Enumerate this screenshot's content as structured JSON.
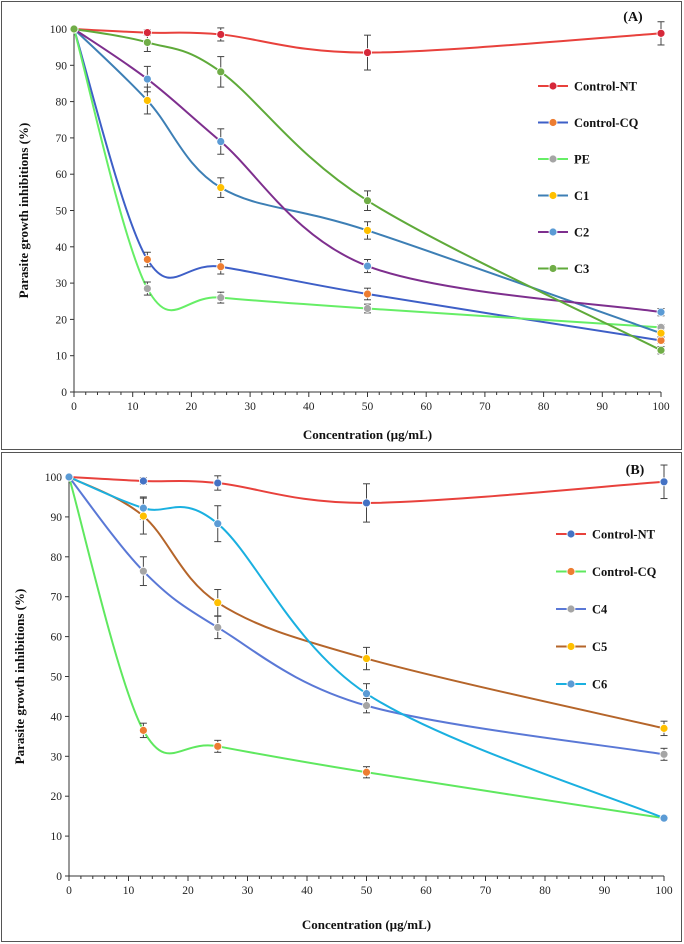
{
  "chart_data": [
    {
      "type": "line",
      "panel_label": "(A)",
      "xlabel": "Concentration (µg/mL)",
      "ylabel": "Parasite growth inhibitions  (%)",
      "x": [
        0,
        12.5,
        25,
        50,
        100
      ],
      "xlim": [
        0,
        100
      ],
      "ylim": [
        0,
        100
      ],
      "xticks": [
        0,
        10,
        20,
        30,
        40,
        50,
        60,
        70,
        80,
        90,
        100
      ],
      "yticks": [
        0,
        10,
        20,
        30,
        40,
        50,
        60,
        70,
        80,
        90,
        100
      ],
      "legend_position": "right",
      "series": [
        {
          "name": "Control-NT",
          "line_color": "#e8413c",
          "marker_color": "#d6283a",
          "values": [
            100,
            99,
            98.5,
            93.5,
            98.8
          ],
          "errors": [
            0,
            0.8,
            1.8,
            4.8,
            3.2
          ]
        },
        {
          "name": "Control-CQ",
          "line_color": "#3e5fc7",
          "marker_color": "#ed7d31",
          "values": [
            100,
            36.5,
            34.5,
            27,
            14.2
          ],
          "errors": [
            0,
            2,
            2,
            1.6,
            0.8
          ]
        },
        {
          "name": "PE",
          "line_color": "#66ee66",
          "marker_color": "#a5a5a5",
          "values": [
            100,
            28.5,
            26,
            23,
            17.8
          ],
          "errors": [
            0,
            1.8,
            1.5,
            1.2,
            0.8
          ]
        },
        {
          "name": "C1",
          "line_color": "#3d7fb5",
          "marker_color": "#ffc000",
          "values": [
            100,
            80.3,
            56.3,
            44.5,
            16.2
          ],
          "errors": [
            0,
            3.7,
            2.7,
            2.4,
            1
          ]
        },
        {
          "name": "C2",
          "line_color": "#7e2f8e",
          "marker_color": "#5b9bd5",
          "values": [
            100,
            86.2,
            69,
            34.7,
            22
          ],
          "errors": [
            0,
            3.5,
            3.5,
            1.8,
            1
          ]
        },
        {
          "name": "C3",
          "line_color": "#5faa3a",
          "marker_color": "#70ad47",
          "values": [
            100,
            96.3,
            88.2,
            52.7,
            11.5
          ],
          "errors": [
            0,
            2.5,
            4.2,
            2.7,
            1
          ]
        }
      ]
    },
    {
      "type": "line",
      "panel_label": "(B)",
      "xlabel": "Concentration (µg/mL)",
      "ylabel": "Parasite growth inhibitions  (%)",
      "x": [
        0,
        12.5,
        25,
        50,
        100
      ],
      "xlim": [
        0,
        100
      ],
      "ylim": [
        0,
        100
      ],
      "xticks": [
        0,
        10,
        20,
        30,
        40,
        50,
        60,
        70,
        80,
        90,
        100
      ],
      "yticks": [
        0,
        10,
        20,
        30,
        40,
        50,
        60,
        70,
        80,
        90,
        100
      ],
      "legend_position": "right",
      "series": [
        {
          "name": "Control-NT",
          "line_color": "#e8413c",
          "marker_color": "#4472c4",
          "values": [
            100,
            99,
            98.5,
            93.5,
            98.8
          ],
          "errors": [
            0,
            0.8,
            1.8,
            4.8,
            4.2
          ]
        },
        {
          "name": "Control-CQ",
          "line_color": "#5fe85f",
          "marker_color": "#ed7d31",
          "values": [
            100,
            36.5,
            32.5,
            26,
            14.5
          ],
          "errors": [
            0,
            1.8,
            1.5,
            1.4,
            0.6
          ]
        },
        {
          "name": "C4",
          "line_color": "#5a78d6",
          "marker_color": "#a5a5a5",
          "values": [
            100,
            76.4,
            62.3,
            42.7,
            30.5
          ],
          "errors": [
            0,
            3.6,
            2.8,
            1.8,
            1.5
          ]
        },
        {
          "name": "C5",
          "line_color": "#b5652a",
          "marker_color": "#ffc000",
          "values": [
            100,
            90.2,
            68.5,
            54.5,
            37
          ],
          "errors": [
            0,
            4.5,
            3.3,
            2.8,
            1.8
          ]
        },
        {
          "name": "C6",
          "line_color": "#1ab0e0",
          "marker_color": "#5b9bd5",
          "values": [
            100,
            92.2,
            88.3,
            45.7,
            14.5
          ],
          "errors": [
            0,
            2.8,
            4.5,
            2.5,
            0.6
          ]
        }
      ]
    }
  ]
}
